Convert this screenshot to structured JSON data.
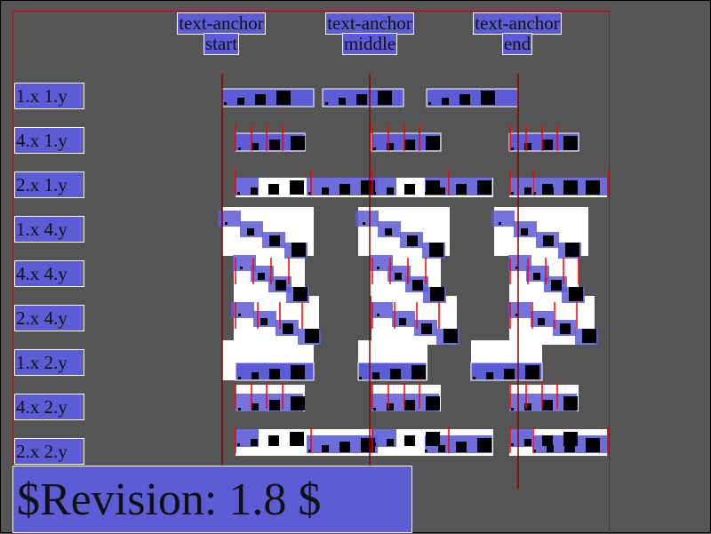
{
  "columns": [
    {
      "line1": "text-anchor",
      "line2": "start"
    },
    {
      "line1": "text-anchor",
      "line2": "middle"
    },
    {
      "line1": "text-anchor",
      "line2": "end"
    }
  ],
  "rows": [
    "1.x 1.y",
    "4.x 1.y",
    "2.x 1.y",
    "1.x 4.y",
    "4.x 4.y",
    "2.x 4.y",
    "1.x 2.y",
    "4.x 2.y",
    "2.x 2.y"
  ],
  "revision": "$Revision: 1.8 $",
  "colors": {
    "background": "#555555",
    "highlight": "#5c5cd6",
    "guide": "#8b0000",
    "tick": "#ff0000",
    "glyph": "#000000",
    "cell": "#ffffff"
  }
}
